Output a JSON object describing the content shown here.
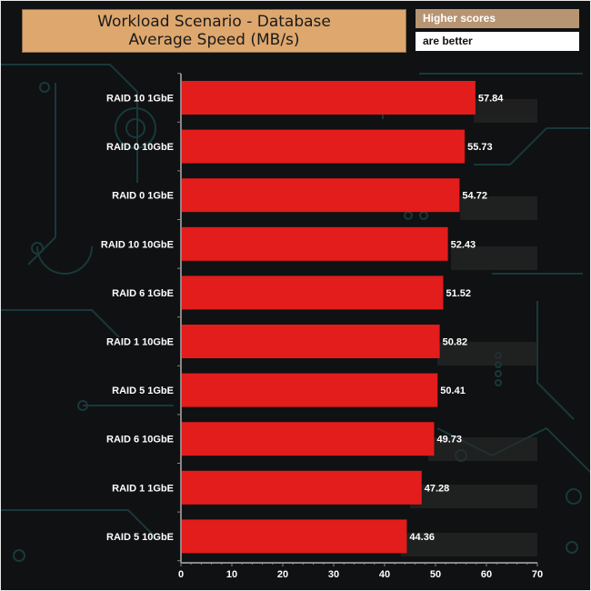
{
  "header": {
    "title_line1": "Workload Scenario - Database",
    "title_line2": "Average Speed (MB/s)",
    "legend_higher": "Higher scores",
    "legend_better": "are better"
  },
  "colors": {
    "bar": "#e31c1c",
    "title_bg": "#dea76e",
    "legend_top_bg": "#b89572",
    "background": "#101112",
    "circuit": "#1f5a5e",
    "axis": "#888888"
  },
  "chart_data": {
    "type": "bar",
    "orientation": "horizontal",
    "title": "Workload Scenario - Database Average Speed (MB/s)",
    "categories": [
      "RAID 10 1GbE",
      "RAID 0 10GbE",
      "RAID 0 1GbE",
      "RAID 10 10GbE",
      "RAID 6 1GbE",
      "RAID 1 10GbE",
      "RAID 5 1GbE",
      "RAID 6 10GbE",
      "RAID 1 1GbE",
      "RAID 5 10GbE"
    ],
    "values": [
      57.84,
      55.73,
      54.72,
      52.43,
      51.52,
      50.82,
      50.41,
      49.73,
      47.28,
      44.36
    ],
    "value_labels": [
      "57.84",
      "55.73",
      "54.72",
      "52.43",
      "51.52",
      "50.82",
      "50.41",
      "49.73",
      "47.28",
      "44.36"
    ],
    "xlim": [
      0,
      70
    ],
    "xticks": [
      0,
      10,
      20,
      30,
      40,
      50,
      60,
      70
    ],
    "xlabel": "",
    "ylabel": "",
    "grid": false,
    "legend": "top-right"
  }
}
